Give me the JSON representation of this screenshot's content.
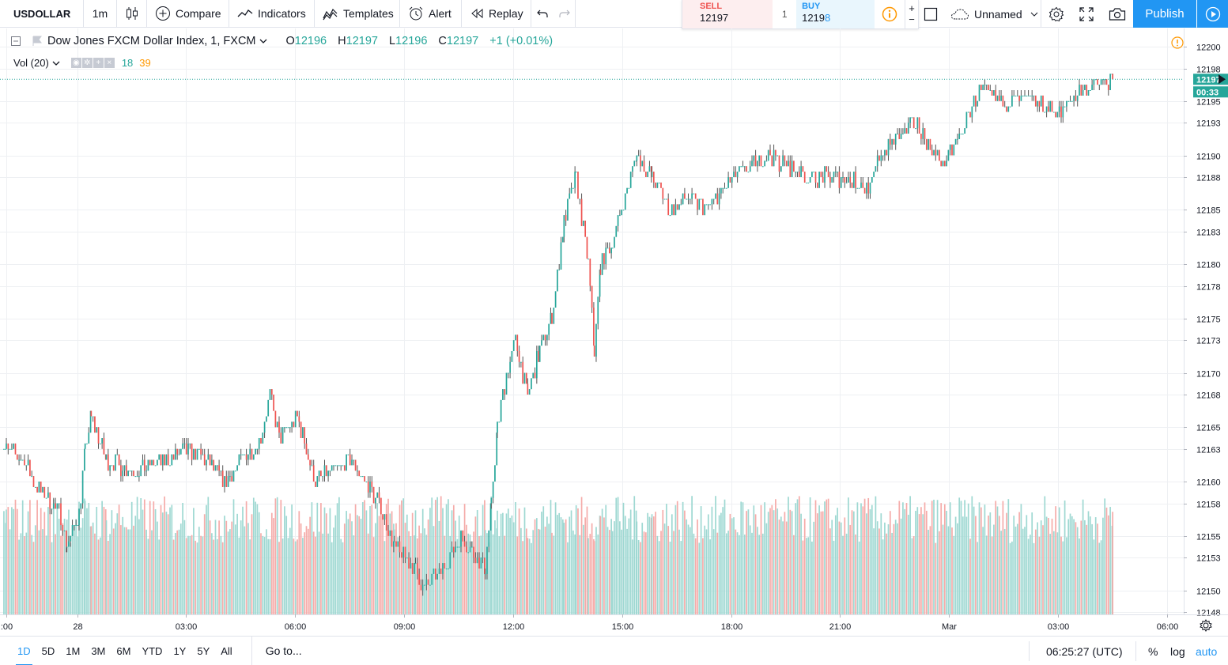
{
  "toolbar": {
    "symbol": "USDOLLAR",
    "interval": "1m",
    "compare_label": "Compare",
    "indicators_label": "Indicators",
    "templates_label": "Templates",
    "alert_label": "Alert",
    "replay_label": "Replay",
    "layout_name": "Unnamed",
    "publish_label": "Publish"
  },
  "trade": {
    "sell_label": "SELL",
    "sell_price": "12197",
    "quantity": "1",
    "buy_label": "BUY",
    "buy_price_main": "1219",
    "buy_price_last": "8",
    "plus": "+",
    "minus": "−"
  },
  "legend": {
    "title": "Dow Jones FXCM Dollar Index, 1, FXCM",
    "o_key": "O",
    "o_val": "12196",
    "h_key": "H",
    "h_val": "12197",
    "l_key": "L",
    "l_val": "12196",
    "c_key": "C",
    "c_val": "12197",
    "change": "+1 (+0.01%)",
    "vol_label": "Vol (20)",
    "vol_value_1": "18",
    "vol_value_2": "39"
  },
  "price_axis": {
    "current_price": "12197",
    "countdown": "00:33"
  },
  "bottom": {
    "ranges": [
      "1D",
      "5D",
      "1M",
      "3M",
      "6M",
      "YTD",
      "1Y",
      "5Y",
      "All"
    ],
    "goto_label": "Go to...",
    "clock": "06:25:27 (UTC)",
    "percent_label": "%",
    "log_label": "log",
    "auto_label": "auto"
  },
  "colors": {
    "up": "#26a69a",
    "down": "#ef5350",
    "accent": "#2196f3",
    "vol_up": "#9ed8d2",
    "vol_down": "#f5aba9",
    "grid": "#eef0f3"
  },
  "chart_data": {
    "type": "candlestick",
    "symbol": "USDOLLAR",
    "interval": "1m",
    "y_ticks": [
      12148,
      12150,
      12153,
      12155,
      12158,
      12160,
      12163,
      12165,
      12168,
      12170,
      12173,
      12175,
      12178,
      12180,
      12183,
      12185,
      12188,
      12190,
      12193,
      12195,
      12198,
      12200
    ],
    "y_tick_labels": [
      "12148",
      "12150",
      "12153",
      "12155",
      "12158",
      "12160",
      "12163",
      "12165",
      "12168",
      "12170",
      "12173",
      "12175",
      "12178",
      "12180",
      "12183",
      "12185",
      "12188",
      "12190",
      "12193",
      "12195",
      "12198",
      "12200"
    ],
    "ylim": [
      12148,
      12200
    ],
    "x_ticks": [
      ":00",
      "28",
      "03:00",
      "06:00",
      "09:00",
      "12:00",
      "15:00",
      "18:00",
      "21:00",
      "Mar",
      "03:00",
      "06:00"
    ],
    "price_path": [
      [
        "23:50",
        12164
      ],
      [
        "00:00",
        12163
      ],
      [
        "00:30",
        12162
      ],
      [
        "00:45",
        12160
      ],
      [
        "01:30",
        12157
      ],
      [
        "01:40",
        12154
      ],
      [
        "02:00",
        12157
      ],
      [
        "02:10",
        12163
      ],
      [
        "02:20",
        12166
      ],
      [
        "02:45",
        12162
      ],
      [
        "03:30",
        12161
      ],
      [
        "04:30",
        12162
      ],
      [
        "05:00",
        12163
      ],
      [
        "05:30",
        12162
      ],
      [
        "06:00",
        12160
      ],
      [
        "06:30",
        12162
      ],
      [
        "07:00",
        12164
      ],
      [
        "07:15",
        12168
      ],
      [
        "07:30",
        12164
      ],
      [
        "08:00",
        12166
      ],
      [
        "08:30",
        12160
      ],
      [
        "09:30",
        12162
      ],
      [
        "10:15",
        12158
      ],
      [
        "10:40",
        12154
      ],
      [
        "11:15",
        12152
      ],
      [
        "11:30",
        12150
      ],
      [
        "12:00",
        12152
      ],
      [
        "12:30",
        12155
      ],
      [
        "13:10",
        12152
      ],
      [
        "13:20",
        12158
      ],
      [
        "13:30",
        12165
      ],
      [
        "13:45",
        12170
      ],
      [
        "14:00",
        12173
      ],
      [
        "14:20",
        12168
      ],
      [
        "14:40",
        12172
      ],
      [
        "15:00",
        12175
      ],
      [
        "15:20",
        12184
      ],
      [
        "15:40",
        12188
      ],
      [
        "16:00",
        12180
      ],
      [
        "16:10",
        12172
      ],
      [
        "16:20",
        12180
      ],
      [
        "16:40",
        12182
      ],
      [
        "17:20",
        12190
      ],
      [
        "17:45",
        12188
      ],
      [
        "18:15",
        12185
      ],
      [
        "18:45",
        12186
      ],
      [
        "19:15",
        12185
      ],
      [
        "20:00",
        12188
      ],
      [
        "21:00",
        12190
      ],
      [
        "22:00",
        12188
      ],
      [
        "23:00",
        12188
      ],
      [
        "23:45",
        12187
      ],
      [
        "00:00",
        12190
      ],
      [
        "01:00",
        12193
      ],
      [
        "01:45",
        12189
      ],
      [
        "02:15",
        12192
      ],
      [
        "02:45",
        12196
      ],
      [
        "03:15",
        12195
      ],
      [
        "04:15",
        12195
      ],
      [
        "05:00",
        12194
      ],
      [
        "05:30",
        12196
      ],
      [
        "06:25",
        12197
      ]
    ]
  }
}
